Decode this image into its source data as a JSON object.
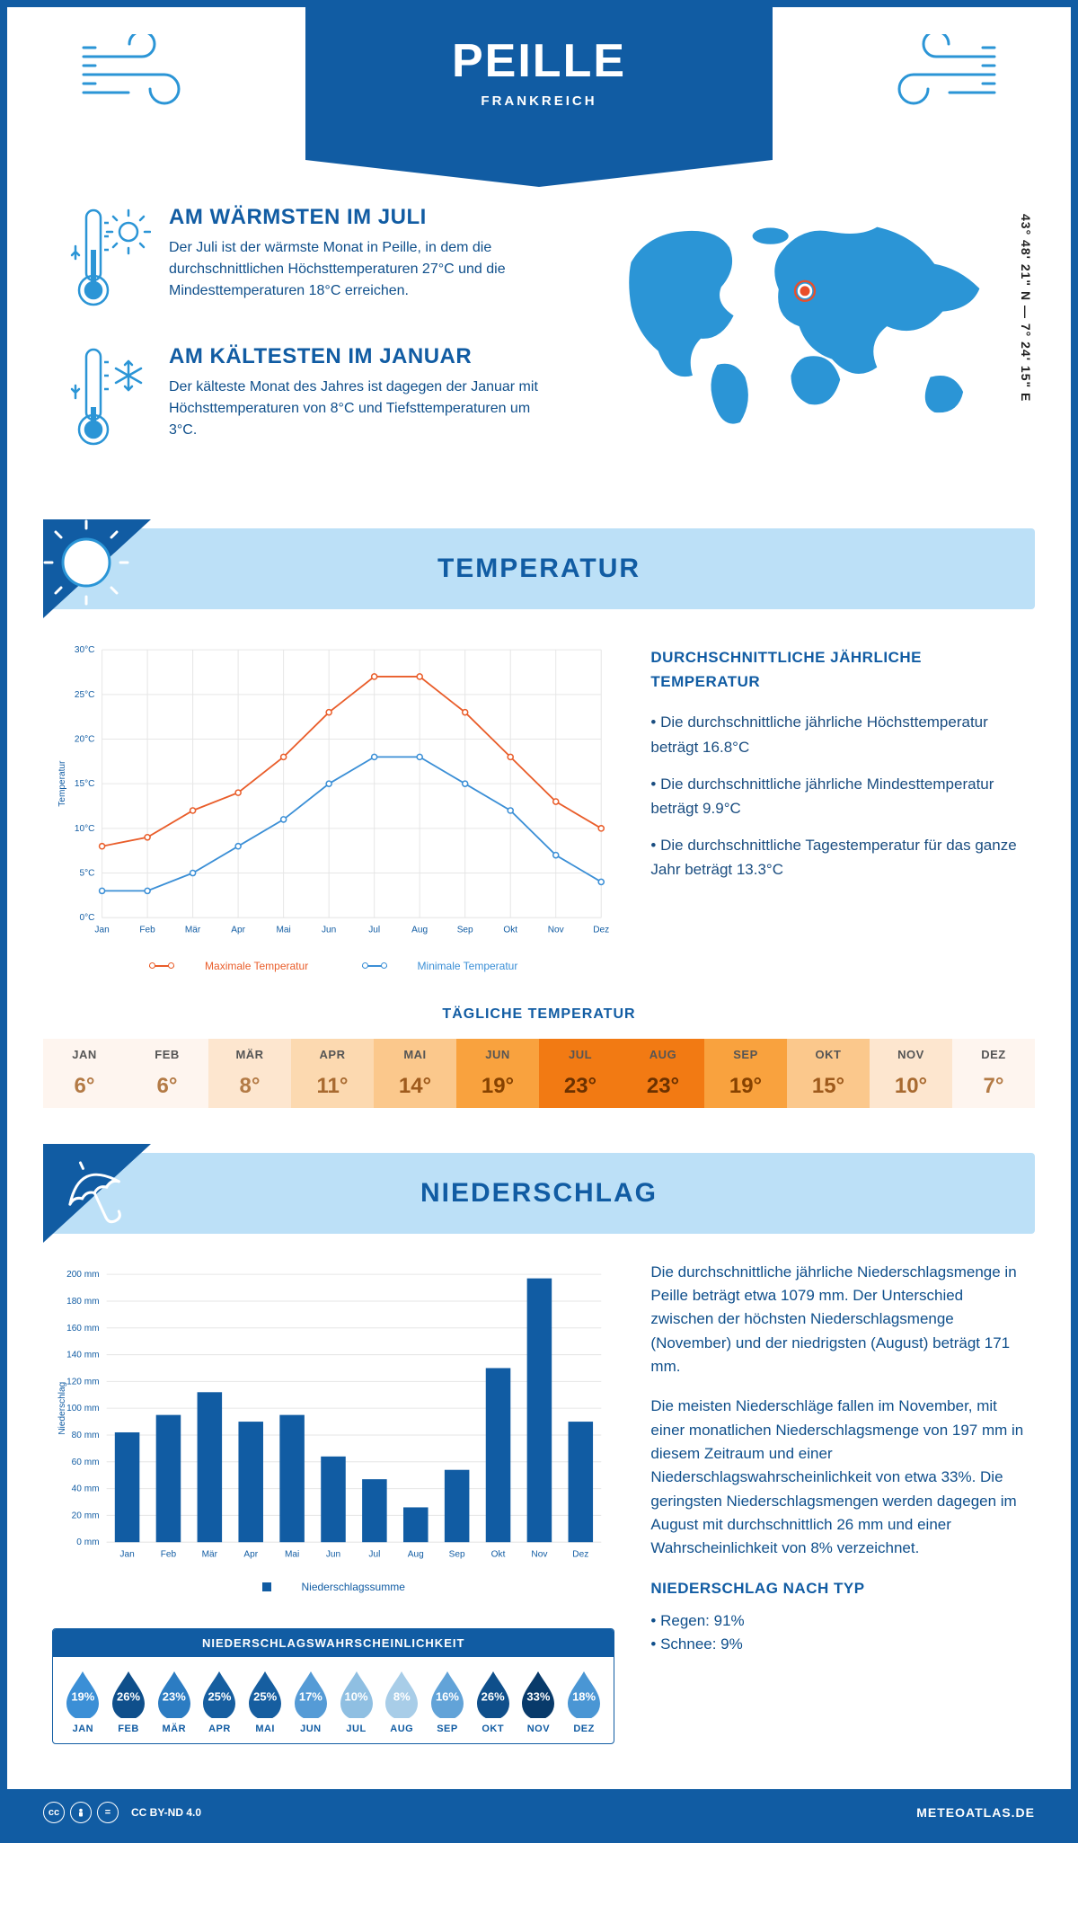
{
  "header": {
    "city": "PEILLE",
    "country": "FRANKREICH"
  },
  "coords": "43° 48' 21\" N — 7° 24' 15\" E",
  "warmest": {
    "title": "AM WÄRMSTEN IM JULI",
    "text": "Der Juli ist der wärmste Monat in Peille, in dem die durchschnittlichen Höchsttemperaturen 27°C und die Mindesttemperaturen 18°C erreichen."
  },
  "coldest": {
    "title": "AM KÄLTESTEN IM JANUAR",
    "text": "Der kälteste Monat des Jahres ist dagegen der Januar mit Höchsttemperaturen von 8°C und Tiefsttemperaturen um 3°C."
  },
  "temp_section": {
    "title": "TEMPERATUR",
    "info_title": "DURCHSCHNITTLICHE JÄHRLICHE TEMPERATUR",
    "bullets": [
      "• Die durchschnittliche jährliche Höchsttemperatur beträgt 16.8°C",
      "• Die durchschnittliche jährliche Mindesttemperatur beträgt 9.9°C",
      "• Die durchschnittliche Tagestemperatur für das ganze Jahr beträgt 13.3°C"
    ],
    "chart": {
      "type": "line",
      "xlabels": [
        "Jan",
        "Feb",
        "Mär",
        "Apr",
        "Mai",
        "Jun",
        "Jul",
        "Aug",
        "Sep",
        "Okt",
        "Nov",
        "Dez"
      ],
      "ylabel": "Temperatur",
      "ylim": [
        0,
        30
      ],
      "ytick_step": 5,
      "ytick_labels": [
        "0°C",
        "5°C",
        "10°C",
        "15°C",
        "20°C",
        "25°C",
        "30°C"
      ],
      "grid_color": "#e6e6e6",
      "background": "#ffffff",
      "series": [
        {
          "name": "Maximale Temperatur",
          "color": "#e95d2a",
          "values": [
            8,
            9,
            12,
            14,
            18,
            23,
            27,
            27,
            23,
            18,
            13,
            10
          ]
        },
        {
          "name": "Minimale Temperatur",
          "color": "#3b8fd6",
          "values": [
            3,
            3,
            5,
            8,
            11,
            15,
            18,
            18,
            15,
            12,
            7,
            4
          ]
        }
      ],
      "line_width": 1.8,
      "marker": "circle",
      "marker_size": 3
    }
  },
  "daily_temp": {
    "title": "TÄGLICHE TEMPERATUR",
    "months": [
      "JAN",
      "FEB",
      "MÄR",
      "APR",
      "MAI",
      "JUN",
      "JUL",
      "AUG",
      "SEP",
      "OKT",
      "NOV",
      "DEZ"
    ],
    "values": [
      "6°",
      "6°",
      "8°",
      "11°",
      "14°",
      "19°",
      "23°",
      "23°",
      "19°",
      "15°",
      "10°",
      "7°"
    ],
    "bg_colors": [
      "#fef5ef",
      "#fef5ef",
      "#fde6cf",
      "#fcd9b0",
      "#fbc88c",
      "#f9a23e",
      "#f27a13",
      "#f27a13",
      "#f9a23e",
      "#fbc88c",
      "#fde6cf",
      "#fef5ef"
    ],
    "text_colors": [
      "#b37a45",
      "#b37a45",
      "#b37a45",
      "#a86a30",
      "#9e5a1c",
      "#864200",
      "#6b3100",
      "#6b3100",
      "#864200",
      "#9e5a1c",
      "#a86a30",
      "#b37a45"
    ]
  },
  "precip_section": {
    "title": "NIEDERSCHLAG",
    "chart": {
      "type": "bar",
      "xlabels": [
        "Jan",
        "Feb",
        "Mär",
        "Apr",
        "Mai",
        "Jun",
        "Jul",
        "Aug",
        "Sep",
        "Okt",
        "Nov",
        "Dez"
      ],
      "ylabel": "Niederschlag",
      "ylim": [
        0,
        200
      ],
      "ytick_step": 20,
      "values": [
        82,
        95,
        112,
        90,
        95,
        64,
        47,
        26,
        54,
        130,
        197,
        90
      ],
      "bar_color": "#115ca3",
      "grid_color": "#e6e6e6",
      "bar_width": 0.6,
      "legend": "Niederschlagssumme"
    },
    "para1": "Die durchschnittliche jährliche Niederschlagsmenge in Peille beträgt etwa 1079 mm. Der Unterschied zwischen der höchsten Niederschlagsmenge (November) und der niedrigsten (August) beträgt 171 mm.",
    "para2": "Die meisten Niederschläge fallen im November, mit einer monatlichen Niederschlagsmenge von 197 mm in diesem Zeitraum und einer Niederschlagswahrscheinlichkeit von etwa 33%. Die geringsten Niederschlagsmengen werden dagegen im August mit durchschnittlich 26 mm und einer Wahrscheinlichkeit von 8% verzeichnet.",
    "bytype_title": "NIEDERSCHLAG NACH TYP",
    "bytype": [
      "• Regen: 91%",
      "• Schnee: 9%"
    ]
  },
  "probability": {
    "title": "NIEDERSCHLAGSWAHRSCHEINLICHKEIT",
    "months": [
      "JAN",
      "FEB",
      "MÄR",
      "APR",
      "MAI",
      "JUN",
      "JUL",
      "AUG",
      "SEP",
      "OKT",
      "NOV",
      "DEZ"
    ],
    "values": [
      "19%",
      "26%",
      "23%",
      "25%",
      "25%",
      "17%",
      "10%",
      "8%",
      "16%",
      "26%",
      "33%",
      "18%"
    ],
    "colors": [
      "#3b8fd6",
      "#0f4f8b",
      "#2c7cc2",
      "#165ea0",
      "#165ea0",
      "#559bd6",
      "#8fbfe2",
      "#a8cde8",
      "#62a3d8",
      "#0f4f8b",
      "#083a6a",
      "#4a96d4"
    ]
  },
  "footer": {
    "license": "CC BY-ND 4.0",
    "brand": "METEOATLAS.DE"
  },
  "colors": {
    "brand": "#115ca3",
    "brand_dark": "#0f4f8b",
    "lightblue": "#bce0f7"
  }
}
